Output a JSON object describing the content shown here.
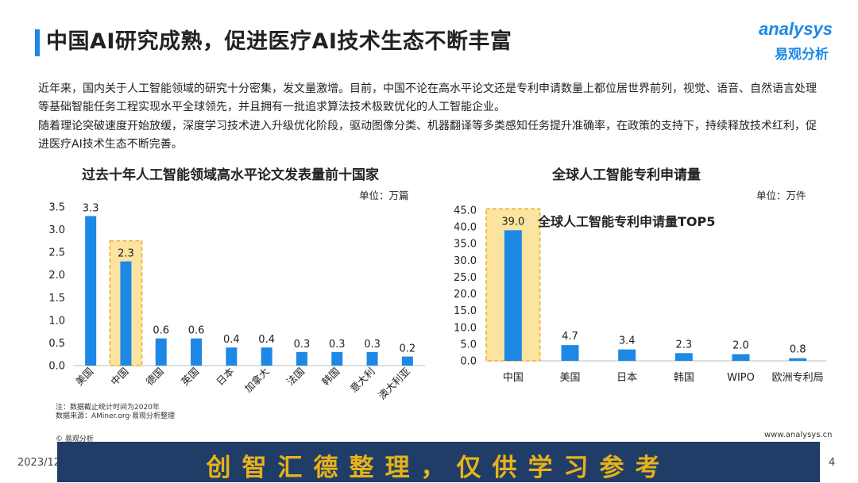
{
  "header": {
    "title": "中国AI研究成熟，促进医疗AI技术生态不断丰富",
    "logo_en": "analysys",
    "logo_cn": "易观分析"
  },
  "paragraphs": [
    "近年来，国内关于人工智能领域的研究十分密集，发文量激增。目前，中国不论在高水平论文还是专利申请数量上都位居世界前列，视觉、语音、自然语言处理等基础智能任务工程实现水平全球领先，并且拥有一批追求算法技术极致优化的人工智能企业。",
    "随着理论突破速度开始放缓，深度学习技术进入升级优化阶段，驱动图像分类、机器翻译等多类感知任务提升准确率，在政策的支持下，持续释放技术红利，促进医疗AI技术生态不断完善。"
  ],
  "footer": {
    "note1": "注：数据截止统计时间为2020年",
    "note2": "数据来源：AMiner.org·易观分析整理",
    "copyright": "© 易观分析",
    "site": "www.analysys.cn",
    "date": "2023/12",
    "page": "4",
    "banner": "创智汇德整理，仅供学习参考"
  },
  "colors": {
    "bar": "#1e88e5",
    "highlight_fill": "#fbe3a0",
    "highlight_border": "#f0b030",
    "title_bar": "#1e88e5",
    "banner_bg": "#1f3d66",
    "banner_text": "#e8b21a"
  },
  "chart_data": [
    {
      "type": "bar",
      "title": "过去十年人工智能领域高水平论文发表量前十国家",
      "unit": "单位：万篇",
      "categories": [
        "美国",
        "中国",
        "德国",
        "英国",
        "日本",
        "加拿大",
        "法国",
        "韩国",
        "意大利",
        "澳大利亚"
      ],
      "values": [
        3.3,
        2.3,
        0.6,
        0.6,
        0.4,
        0.4,
        0.3,
        0.3,
        0.3,
        0.2
      ],
      "value_labels": [
        "3.3",
        "2.3",
        "0.6",
        "0.6",
        "0.4",
        "0.4",
        "0.3",
        "0.3",
        "0.3",
        "0.2"
      ],
      "yticks": [
        "0.0",
        "0.5",
        "1.0",
        "1.5",
        "2.0",
        "2.5",
        "3.0",
        "3.5"
      ],
      "ylim": [
        0,
        3.5
      ],
      "highlight_index": 1,
      "rotated_labels": true
    },
    {
      "type": "bar",
      "title": "全球人工智能专利申请量",
      "unit": "单位：万件",
      "annotation": "全球人工智能专利申请量TOP5",
      "categories": [
        "中国",
        "美国",
        "日本",
        "韩国",
        "WIPO",
        "欧洲专利局"
      ],
      "values": [
        39.0,
        4.7,
        3.4,
        2.3,
        2.0,
        0.8
      ],
      "value_labels": [
        "39.0",
        "4.7",
        "3.4",
        "2.3",
        "2.0",
        "0.8"
      ],
      "yticks": [
        "0.0",
        "5.0",
        "10.0",
        "15.0",
        "20.0",
        "25.0",
        "30.0",
        "35.0",
        "40.0",
        "45.0"
      ],
      "ylim": [
        0,
        45
      ],
      "highlight_index": 0,
      "rotated_labels": false
    }
  ]
}
